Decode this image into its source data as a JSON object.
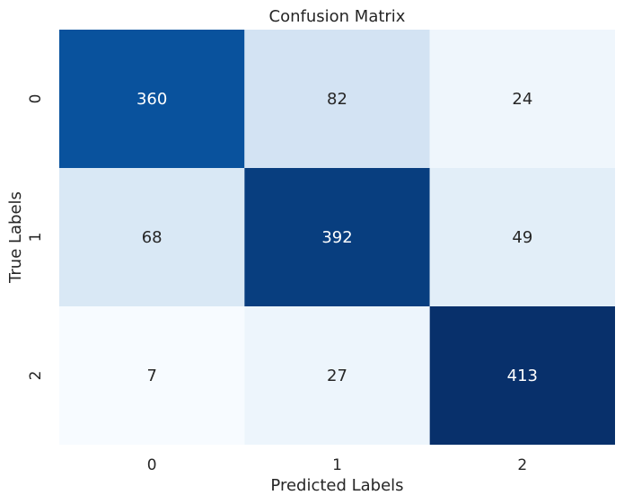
{
  "chart_data": {
    "type": "heatmap",
    "title": "Confusion Matrix",
    "xlabel": "Predicted Labels",
    "ylabel": "True Labels",
    "x_categories": [
      "0",
      "1",
      "2"
    ],
    "y_categories": [
      "0",
      "1",
      "2"
    ],
    "values": [
      [
        360,
        82,
        24
      ],
      [
        68,
        392,
        49
      ],
      [
        7,
        27,
        413
      ]
    ],
    "colormap": "Blues",
    "color_range": [
      7,
      413
    ],
    "grid": false,
    "legend": "none"
  }
}
